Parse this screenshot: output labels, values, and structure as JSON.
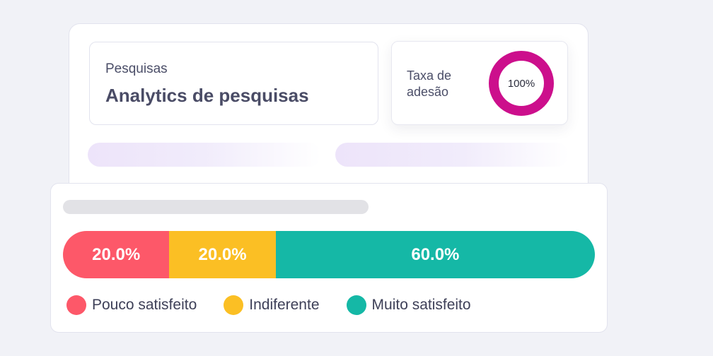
{
  "header": {
    "eyebrow": "Pesquisas",
    "title": "Analytics de pesquisas"
  },
  "adhesion": {
    "label": "Taxa de adesão",
    "value": "100%",
    "percent": 100,
    "color": "#cc0f8c"
  },
  "chart_data": {
    "type": "bar",
    "orientation": "horizontal-stacked",
    "categories": [
      "Pouco satisfeito",
      "Indiferente",
      "Muito satisfeito"
    ],
    "values": [
      20.0,
      20.0,
      60.0
    ],
    "labels": [
      "20.0%",
      "20.0%",
      "60.0%"
    ],
    "colors": [
      "#fd5869",
      "#fbbf24",
      "#15b8a6"
    ],
    "legend": "bottom-left"
  }
}
